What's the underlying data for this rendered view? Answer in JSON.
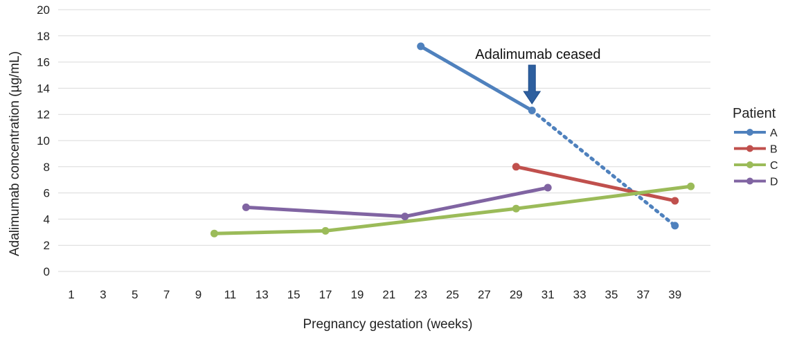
{
  "chart_data": {
    "type": "line",
    "xlabel": "Pregnancy gestation (weeks)",
    "ylabel": "Adalimumab concentration (µg/mL)",
    "x_ticks": [
      "1",
      "3",
      "5",
      "7",
      "9",
      "11",
      "13",
      "15",
      "17",
      "19",
      "21",
      "23",
      "25",
      "27",
      "29",
      "31",
      "33",
      "35",
      "37",
      "39"
    ],
    "ylim": [
      0,
      20
    ],
    "y_ticks": [
      0,
      2,
      4,
      6,
      8,
      10,
      12,
      14,
      16,
      18,
      20
    ],
    "grid": "horizontal",
    "legend": {
      "title": "Patient",
      "position": "right"
    },
    "series": [
      {
        "name": "A",
        "color": "#4F81BD",
        "points": [
          [
            23,
            17.2
          ],
          [
            30,
            12.3
          ]
        ],
        "projected": [
          [
            30,
            12.3
          ],
          [
            39,
            3.5
          ]
        ]
      },
      {
        "name": "B",
        "color": "#C0504D",
        "points": [
          [
            29,
            8.0
          ],
          [
            39,
            5.4
          ]
        ]
      },
      {
        "name": "C",
        "color": "#9BBB59",
        "points": [
          [
            10,
            2.9
          ],
          [
            17,
            3.1
          ],
          [
            29,
            4.8
          ],
          [
            40,
            6.5
          ]
        ]
      },
      {
        "name": "D",
        "color": "#8064A2",
        "points": [
          [
            12,
            4.9
          ],
          [
            22,
            4.2
          ],
          [
            31,
            6.4
          ]
        ]
      }
    ],
    "annotations": [
      {
        "text": "Adalimumab ceased",
        "x": 30,
        "y": 12.3,
        "arrow_color": "#2E5F9E"
      }
    ]
  }
}
